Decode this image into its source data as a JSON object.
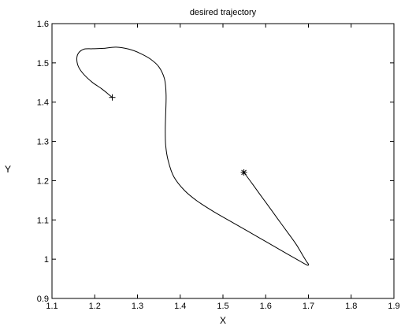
{
  "chart_data": {
    "type": "line",
    "title": "desired trajectory",
    "xlabel": "X",
    "ylabel": "Y",
    "xlim": [
      1.1,
      1.9
    ],
    "ylim": [
      0.9,
      1.6
    ],
    "xticks": [
      "1.1",
      "1.2",
      "1.3",
      "1.4",
      "1.5",
      "1.6",
      "1.7",
      "1.8",
      "1.9"
    ],
    "yticks": [
      "0.9",
      "1",
      "1.1",
      "1.2",
      "1.3",
      "1.4",
      "1.5",
      "1.6"
    ],
    "grid": false,
    "series": [
      {
        "x": [
          1.549,
          1.57,
          1.59,
          1.61,
          1.63,
          1.65,
          1.67,
          1.685,
          1.695,
          1.7,
          1.697,
          1.68,
          1.64,
          1.6,
          1.56,
          1.52,
          1.48,
          1.44,
          1.41,
          1.385,
          1.372,
          1.366,
          1.365,
          1.366,
          1.367,
          1.363,
          1.35,
          1.33,
          1.305,
          1.28,
          1.25,
          1.22,
          1.195,
          1.175,
          1.162,
          1.158,
          1.162,
          1.175,
          1.195,
          1.215,
          1.23,
          1.241
        ],
        "y": [
          1.221,
          1.19,
          1.16,
          1.13,
          1.1,
          1.07,
          1.04,
          1.013,
          0.995,
          0.987,
          0.985,
          0.995,
          1.02,
          1.045,
          1.07,
          1.095,
          1.12,
          1.148,
          1.175,
          1.21,
          1.25,
          1.29,
          1.33,
          1.37,
          1.42,
          1.46,
          1.49,
          1.51,
          1.525,
          1.535,
          1.54,
          1.537,
          1.536,
          1.535,
          1.525,
          1.51,
          1.49,
          1.47,
          1.45,
          1.435,
          1.422,
          1.412
        ]
      }
    ],
    "markers": [
      {
        "symbol": "*",
        "x": 1.549,
        "y": 1.221
      },
      {
        "symbol": "+",
        "x": 1.241,
        "y": 1.412
      }
    ]
  }
}
